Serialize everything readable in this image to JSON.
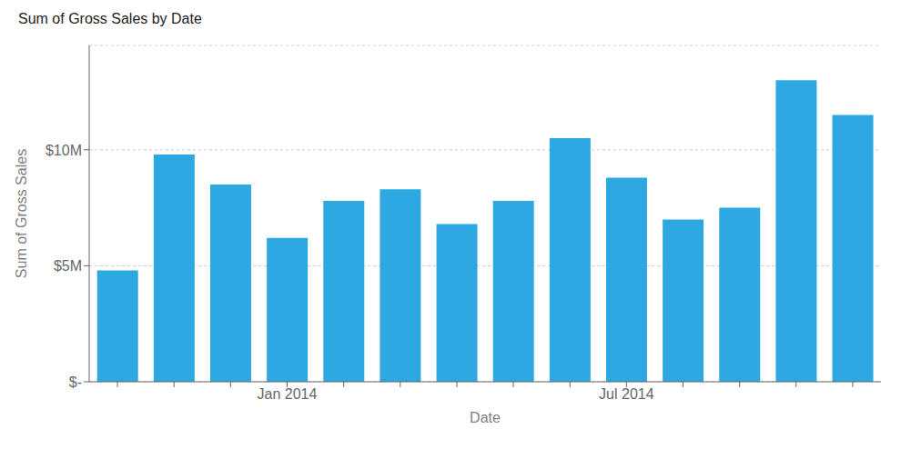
{
  "chart_data": {
    "type": "bar",
    "title": "Sum of Gross Sales by Date",
    "x_label": "Date",
    "y_label": "Sum of Gross Sales",
    "categories": [
      null,
      null,
      null,
      "Jan 2014",
      null,
      null,
      null,
      null,
      null,
      "Jul 2014",
      null,
      null,
      null,
      null
    ],
    "values": [
      4800000,
      9800000,
      8500000,
      6200000,
      7800000,
      8300000,
      6800000,
      7800000,
      10500000,
      8800000,
      7000000,
      7500000,
      13000000,
      11500000
    ],
    "color": "#2da8e0",
    "ylim": [
      0,
      14500000
    ],
    "yticks": [
      {
        "value": 0,
        "label": "$-"
      },
      {
        "value": 5000000,
        "label": "$5M"
      },
      {
        "value": 10000000,
        "label": "$10M"
      }
    ],
    "grid": true
  }
}
